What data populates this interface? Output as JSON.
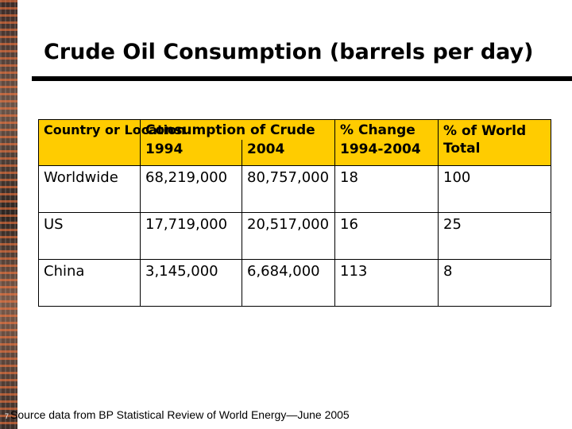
{
  "title": "Crude Oil Consumption (barrels per day)",
  "table": {
    "col_country": "Country or Location",
    "col_consumption": "Consumption of Crude",
    "col_1994": "1994",
    "col_2004": "2004",
    "col_change_line1": "% Change",
    "col_change_line2": "1994-2004",
    "col_pct_world": "% of World Total",
    "rows": [
      {
        "location": "Worldwide",
        "y1994": "68,219,000",
        "y2004": "80,757,000",
        "change": "18",
        "pct": "100"
      },
      {
        "location": "US",
        "y1994": "17,719,000",
        "y2004": "20,517,000",
        "change": "16",
        "pct": "25"
      },
      {
        "location": "China",
        "y1994": "3,145,000",
        "y2004": "6,684,000",
        "change": "113",
        "pct": "8"
      }
    ]
  },
  "footer": {
    "page_number": "7",
    "source": "Source data from BP Statistical Review of World Energy—June 2005"
  },
  "colors": {
    "header_fill": "#ffcc00"
  }
}
